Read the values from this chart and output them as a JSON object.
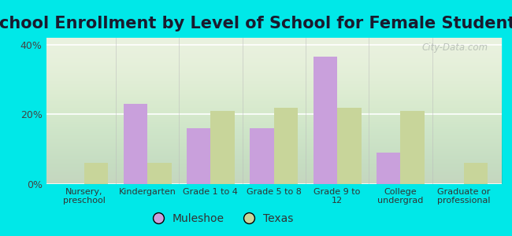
{
  "title": "School Enrollment by Level of School for Female Students",
  "categories": [
    "Nursery,\npreschool",
    "Kindergarten",
    "Grade 1 to 4",
    "Grade 5 to 8",
    "Grade 9 to\n12",
    "College\nundergrad",
    "Graduate or\nprofessional"
  ],
  "muleshoe": [
    0.0,
    23.0,
    16.0,
    16.0,
    36.5,
    9.0,
    0.0
  ],
  "texas": [
    6.0,
    6.0,
    21.0,
    22.0,
    22.0,
    21.0,
    6.0
  ],
  "muleshoe_color": "#c9a0dc",
  "texas_color": "#c8d59a",
  "background_outer": "#00e8e8",
  "background_inner": "#e8f0dc",
  "ylim": [
    0,
    42
  ],
  "yticks": [
    0,
    20,
    40
  ],
  "ytick_labels": [
    "0%",
    "20%",
    "40%"
  ],
  "bar_width": 0.38,
  "title_fontsize": 15,
  "legend_labels": [
    "Muleshoe",
    "Texas"
  ],
  "watermark": "City-Data.com"
}
